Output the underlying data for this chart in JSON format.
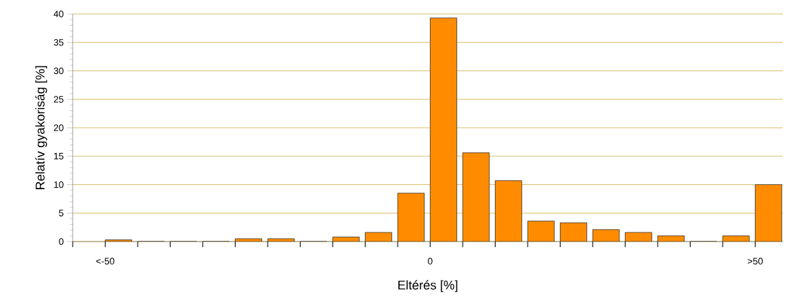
{
  "chart_data": {
    "type": "bar",
    "xlabel": "Eltérés [%]",
    "ylabel": "Relatív gyakoriság [%]",
    "categories": [
      "<-50",
      null,
      null,
      null,
      null,
      null,
      null,
      null,
      null,
      null,
      "0",
      null,
      null,
      null,
      null,
      null,
      null,
      null,
      null,
      null,
      ">50"
    ],
    "values": [
      0.3,
      0,
      0,
      0,
      0.5,
      0.5,
      0,
      0.8,
      1.6,
      8.5,
      39.3,
      15.6,
      10.7,
      3.6,
      3.3,
      2.1,
      1.6,
      1.0,
      0,
      1.0,
      10.0
    ],
    "color": "#ff8c00",
    "ylim": [
      0,
      40
    ],
    "yticks": [
      0,
      5,
      10,
      15,
      20,
      25,
      30,
      35,
      40
    ],
    "grid": "y"
  }
}
